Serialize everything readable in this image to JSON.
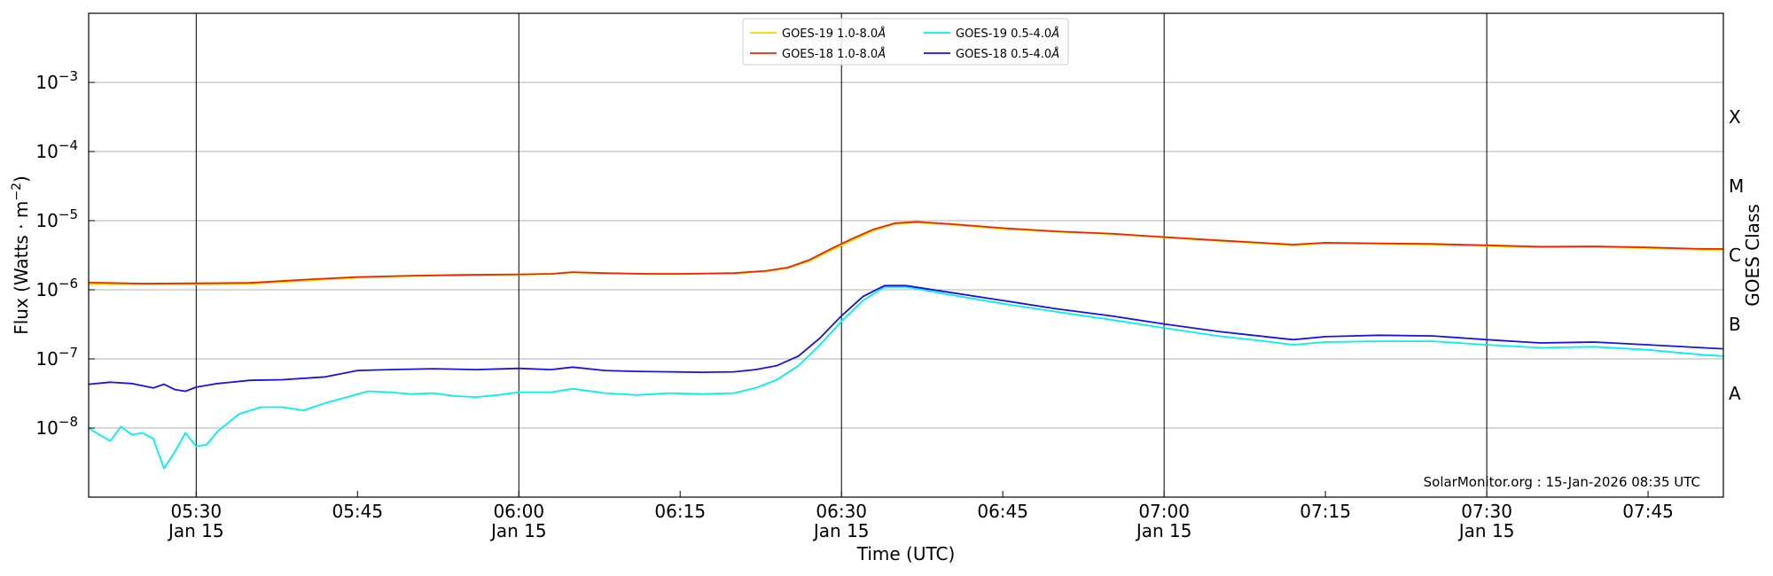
{
  "chart_data": {
    "type": "line",
    "xlabel": "Time (UTC)",
    "ylabel_main": "Flux (Watts · m",
    "ylabel_sup": "−2",
    "ylabel_close": ")",
    "right_label": "GOES Class",
    "credit": "SolarMonitor.org : 15-Jan-2026 08:35 UTC",
    "xlim": [
      "05:20",
      "07:52"
    ],
    "ylim": [
      1e-09,
      0.01
    ],
    "yscale": "log",
    "x_ticks": [
      {
        "t": "05:30",
        "label": "05:30",
        "date": "Jan 15"
      },
      {
        "t": "05:45",
        "label": "05:45",
        "date": ""
      },
      {
        "t": "06:00",
        "label": "06:00",
        "date": "Jan 15"
      },
      {
        "t": "06:15",
        "label": "06:15",
        "date": ""
      },
      {
        "t": "06:30",
        "label": "06:30",
        "date": "Jan 15"
      },
      {
        "t": "06:45",
        "label": "06:45",
        "date": ""
      },
      {
        "t": "07:00",
        "label": "07:00",
        "date": "Jan 15"
      },
      {
        "t": "07:15",
        "label": "07:15",
        "date": ""
      },
      {
        "t": "07:30",
        "label": "07:30",
        "date": "Jan 15"
      },
      {
        "t": "07:45",
        "label": "07:45",
        "date": ""
      }
    ],
    "day_lines": [
      "05:30",
      "06:00",
      "06:30",
      "07:00",
      "07:30"
    ],
    "y_ticks": [
      {
        "v": 1e-08,
        "mant": "10",
        "exp": "−8"
      },
      {
        "v": 1e-07,
        "mant": "10",
        "exp": "−7"
      },
      {
        "v": 1e-06,
        "mant": "10",
        "exp": "−6"
      },
      {
        "v": 1e-05,
        "mant": "10",
        "exp": "−5"
      },
      {
        "v": 0.0001,
        "mant": "10",
        "exp": "−4"
      },
      {
        "v": 0.001,
        "mant": "10",
        "exp": "−3"
      }
    ],
    "classes": [
      {
        "label": "A",
        "v": 3.16e-08
      },
      {
        "label": "B",
        "v": 3.16e-07
      },
      {
        "label": "C",
        "v": 3.16e-06
      },
      {
        "label": "M",
        "v": 3.16e-05
      },
      {
        "label": "X",
        "v": 0.000316
      }
    ],
    "grid": "horizontal",
    "legend_position": "top-center",
    "series": [
      {
        "name": "GOES-19 1.0-8.0",
        "color": "#ffd700",
        "legend_row": 0,
        "legend_col": 0,
        "points": [
          [
            "05:20",
            1.2e-06
          ],
          [
            "05:25",
            1.2e-06
          ],
          [
            "05:30",
            1.2e-06
          ],
          [
            "05:35",
            1.22e-06
          ],
          [
            "05:40",
            1.35e-06
          ],
          [
            "05:45",
            1.5e-06
          ],
          [
            "05:50",
            1.58e-06
          ],
          [
            "05:55",
            1.62e-06
          ],
          [
            "06:00",
            1.65e-06
          ],
          [
            "06:03",
            1.68e-06
          ],
          [
            "06:05",
            1.78e-06
          ],
          [
            "06:08",
            1.72e-06
          ],
          [
            "06:12",
            1.68e-06
          ],
          [
            "06:15",
            1.68e-06
          ],
          [
            "06:20",
            1.72e-06
          ],
          [
            "06:23",
            1.85e-06
          ],
          [
            "06:25",
            2.05e-06
          ],
          [
            "06:27",
            2.6e-06
          ],
          [
            "06:29",
            3.7e-06
          ],
          [
            "06:31",
            5.2e-06
          ],
          [
            "06:33",
            7.2e-06
          ],
          [
            "06:35",
            9e-06
          ],
          [
            "06:37",
            9.4e-06
          ],
          [
            "06:40",
            8.8e-06
          ],
          [
            "06:45",
            7.6e-06
          ],
          [
            "06:50",
            6.9e-06
          ],
          [
            "06:55",
            6.4e-06
          ],
          [
            "07:00",
            5.7e-06
          ],
          [
            "07:05",
            5.1e-06
          ],
          [
            "07:10",
            4.6e-06
          ],
          [
            "07:12",
            4.4e-06
          ],
          [
            "07:15",
            4.7e-06
          ],
          [
            "07:20",
            4.6e-06
          ],
          [
            "07:25",
            4.5e-06
          ],
          [
            "07:30",
            4.3e-06
          ],
          [
            "07:35",
            4.1e-06
          ],
          [
            "07:40",
            4.15e-06
          ],
          [
            "07:45",
            4e-06
          ],
          [
            "07:50",
            3.8e-06
          ],
          [
            "07:52",
            3.8e-06
          ]
        ]
      },
      {
        "name": "GOES-18 1.0-8.0",
        "color": "#e82900",
        "legend_row": 1,
        "legend_col": 0,
        "points": [
          [
            "05:20",
            1.27e-06
          ],
          [
            "05:25",
            1.23e-06
          ],
          [
            "05:30",
            1.24e-06
          ],
          [
            "05:35",
            1.26e-06
          ],
          [
            "05:40",
            1.4e-06
          ],
          [
            "05:45",
            1.53e-06
          ],
          [
            "05:50",
            1.6e-06
          ],
          [
            "05:55",
            1.64e-06
          ],
          [
            "06:00",
            1.67e-06
          ],
          [
            "06:03",
            1.7e-06
          ],
          [
            "06:05",
            1.8e-06
          ],
          [
            "06:08",
            1.74e-06
          ],
          [
            "06:12",
            1.7e-06
          ],
          [
            "06:15",
            1.7e-06
          ],
          [
            "06:20",
            1.74e-06
          ],
          [
            "06:23",
            1.88e-06
          ],
          [
            "06:25",
            2.1e-06
          ],
          [
            "06:27",
            2.7e-06
          ],
          [
            "06:29",
            3.9e-06
          ],
          [
            "06:31",
            5.5e-06
          ],
          [
            "06:33",
            7.5e-06
          ],
          [
            "06:35",
            9.2e-06
          ],
          [
            "06:37",
            9.6e-06
          ],
          [
            "06:40",
            9e-06
          ],
          [
            "06:45",
            7.8e-06
          ],
          [
            "06:50",
            7e-06
          ],
          [
            "06:55",
            6.5e-06
          ],
          [
            "07:00",
            5.8e-06
          ],
          [
            "07:05",
            5.2e-06
          ],
          [
            "07:10",
            4.7e-06
          ],
          [
            "07:12",
            4.5e-06
          ],
          [
            "07:15",
            4.8e-06
          ],
          [
            "07:20",
            4.7e-06
          ],
          [
            "07:25",
            4.6e-06
          ],
          [
            "07:30",
            4.4e-06
          ],
          [
            "07:35",
            4.2e-06
          ],
          [
            "07:40",
            4.25e-06
          ],
          [
            "07:45",
            4.1e-06
          ],
          [
            "07:50",
            3.9e-06
          ],
          [
            "07:52",
            3.9e-06
          ]
        ]
      },
      {
        "name": "GOES-19 0.5-4.0",
        "color": "#00f0f0",
        "legend_row": 0,
        "legend_col": 1,
        "points": [
          [
            "05:20",
            1e-08
          ],
          [
            "05:21",
            8e-09
          ],
          [
            "05:22",
            6.5e-09
          ],
          [
            "05:23",
            1.05e-08
          ],
          [
            "05:24",
            8e-09
          ],
          [
            "05:25",
            8.5e-09
          ],
          [
            "05:26",
            7e-09
          ],
          [
            "05:27",
            2.6e-09
          ],
          [
            "05:28",
            4.5e-09
          ],
          [
            "05:29",
            8.5e-09
          ],
          [
            "05:30",
            5.4e-09
          ],
          [
            "05:31",
            5.8e-09
          ],
          [
            "05:32",
            9e-09
          ],
          [
            "05:33",
            1.2e-08
          ],
          [
            "05:34",
            1.6e-08
          ],
          [
            "05:36",
            2e-08
          ],
          [
            "05:38",
            2e-08
          ],
          [
            "05:40",
            1.8e-08
          ],
          [
            "05:42",
            2.3e-08
          ],
          [
            "05:44",
            2.8e-08
          ],
          [
            "05:46",
            3.4e-08
          ],
          [
            "05:48",
            3.3e-08
          ],
          [
            "05:50",
            3.1e-08
          ],
          [
            "05:52",
            3.2e-08
          ],
          [
            "05:54",
            2.9e-08
          ],
          [
            "05:56",
            2.8e-08
          ],
          [
            "05:58",
            3e-08
          ],
          [
            "06:00",
            3.3e-08
          ],
          [
            "06:03",
            3.3e-08
          ],
          [
            "06:05",
            3.7e-08
          ],
          [
            "06:08",
            3.2e-08
          ],
          [
            "06:11",
            3e-08
          ],
          [
            "06:14",
            3.2e-08
          ],
          [
            "06:17",
            3.1e-08
          ],
          [
            "06:20",
            3.2e-08
          ],
          [
            "06:22",
            3.8e-08
          ],
          [
            "06:24",
            5e-08
          ],
          [
            "06:26",
            8e-08
          ],
          [
            "06:28",
            1.6e-07
          ],
          [
            "06:30",
            3.5e-07
          ],
          [
            "06:32",
            7e-07
          ],
          [
            "06:34",
            1.1e-06
          ],
          [
            "06:36",
            1.1e-06
          ],
          [
            "06:40",
            8.5e-07
          ],
          [
            "06:45",
            6.3e-07
          ],
          [
            "06:50",
            4.8e-07
          ],
          [
            "06:55",
            3.7e-07
          ],
          [
            "07:00",
            2.8e-07
          ],
          [
            "07:05",
            2.15e-07
          ],
          [
            "07:10",
            1.75e-07
          ],
          [
            "07:12",
            1.6e-07
          ],
          [
            "07:15",
            1.75e-07
          ],
          [
            "07:20",
            1.8e-07
          ],
          [
            "07:25",
            1.8e-07
          ],
          [
            "07:30",
            1.6e-07
          ],
          [
            "07:35",
            1.45e-07
          ],
          [
            "07:40",
            1.5e-07
          ],
          [
            "07:45",
            1.35e-07
          ],
          [
            "07:50",
            1.15e-07
          ],
          [
            "07:52",
            1.1e-07
          ]
        ]
      },
      {
        "name": "GOES-18 0.5-4.0",
        "color": "#1a10e8",
        "legend_row": 1,
        "legend_col": 1,
        "points": [
          [
            "05:20",
            4.3e-08
          ],
          [
            "05:22",
            4.6e-08
          ],
          [
            "05:24",
            4.4e-08
          ],
          [
            "05:26",
            3.8e-08
          ],
          [
            "05:27",
            4.3e-08
          ],
          [
            "05:28",
            3.6e-08
          ],
          [
            "05:29",
            3.4e-08
          ],
          [
            "05:30",
            3.9e-08
          ],
          [
            "05:32",
            4.4e-08
          ],
          [
            "05:35",
            4.9e-08
          ],
          [
            "05:38",
            5e-08
          ],
          [
            "05:42",
            5.5e-08
          ],
          [
            "05:45",
            6.8e-08
          ],
          [
            "05:48",
            7e-08
          ],
          [
            "05:52",
            7.2e-08
          ],
          [
            "05:56",
            7e-08
          ],
          [
            "06:00",
            7.3e-08
          ],
          [
            "06:03",
            7e-08
          ],
          [
            "06:05",
            7.6e-08
          ],
          [
            "06:08",
            6.8e-08
          ],
          [
            "06:11",
            6.6e-08
          ],
          [
            "06:14",
            6.5e-08
          ],
          [
            "06:17",
            6.4e-08
          ],
          [
            "06:20",
            6.5e-08
          ],
          [
            "06:22",
            7e-08
          ],
          [
            "06:24",
            8e-08
          ],
          [
            "06:26",
            1.1e-07
          ],
          [
            "06:28",
            2e-07
          ],
          [
            "06:30",
            4.2e-07
          ],
          [
            "06:32",
            8e-07
          ],
          [
            "06:34",
            1.15e-06
          ],
          [
            "06:36",
            1.15e-06
          ],
          [
            "06:40",
            9.2e-07
          ],
          [
            "06:45",
            7e-07
          ],
          [
            "06:50",
            5.3e-07
          ],
          [
            "06:55",
            4.2e-07
          ],
          [
            "07:00",
            3.2e-07
          ],
          [
            "07:05",
            2.5e-07
          ],
          [
            "07:10",
            2.05e-07
          ],
          [
            "07:12",
            1.9e-07
          ],
          [
            "07:15",
            2.1e-07
          ],
          [
            "07:20",
            2.2e-07
          ],
          [
            "07:25",
            2.15e-07
          ],
          [
            "07:30",
            1.9e-07
          ],
          [
            "07:35",
            1.7e-07
          ],
          [
            "07:40",
            1.75e-07
          ],
          [
            "07:45",
            1.6e-07
          ],
          [
            "07:50",
            1.45e-07
          ],
          [
            "07:52",
            1.4e-07
          ]
        ]
      }
    ]
  }
}
